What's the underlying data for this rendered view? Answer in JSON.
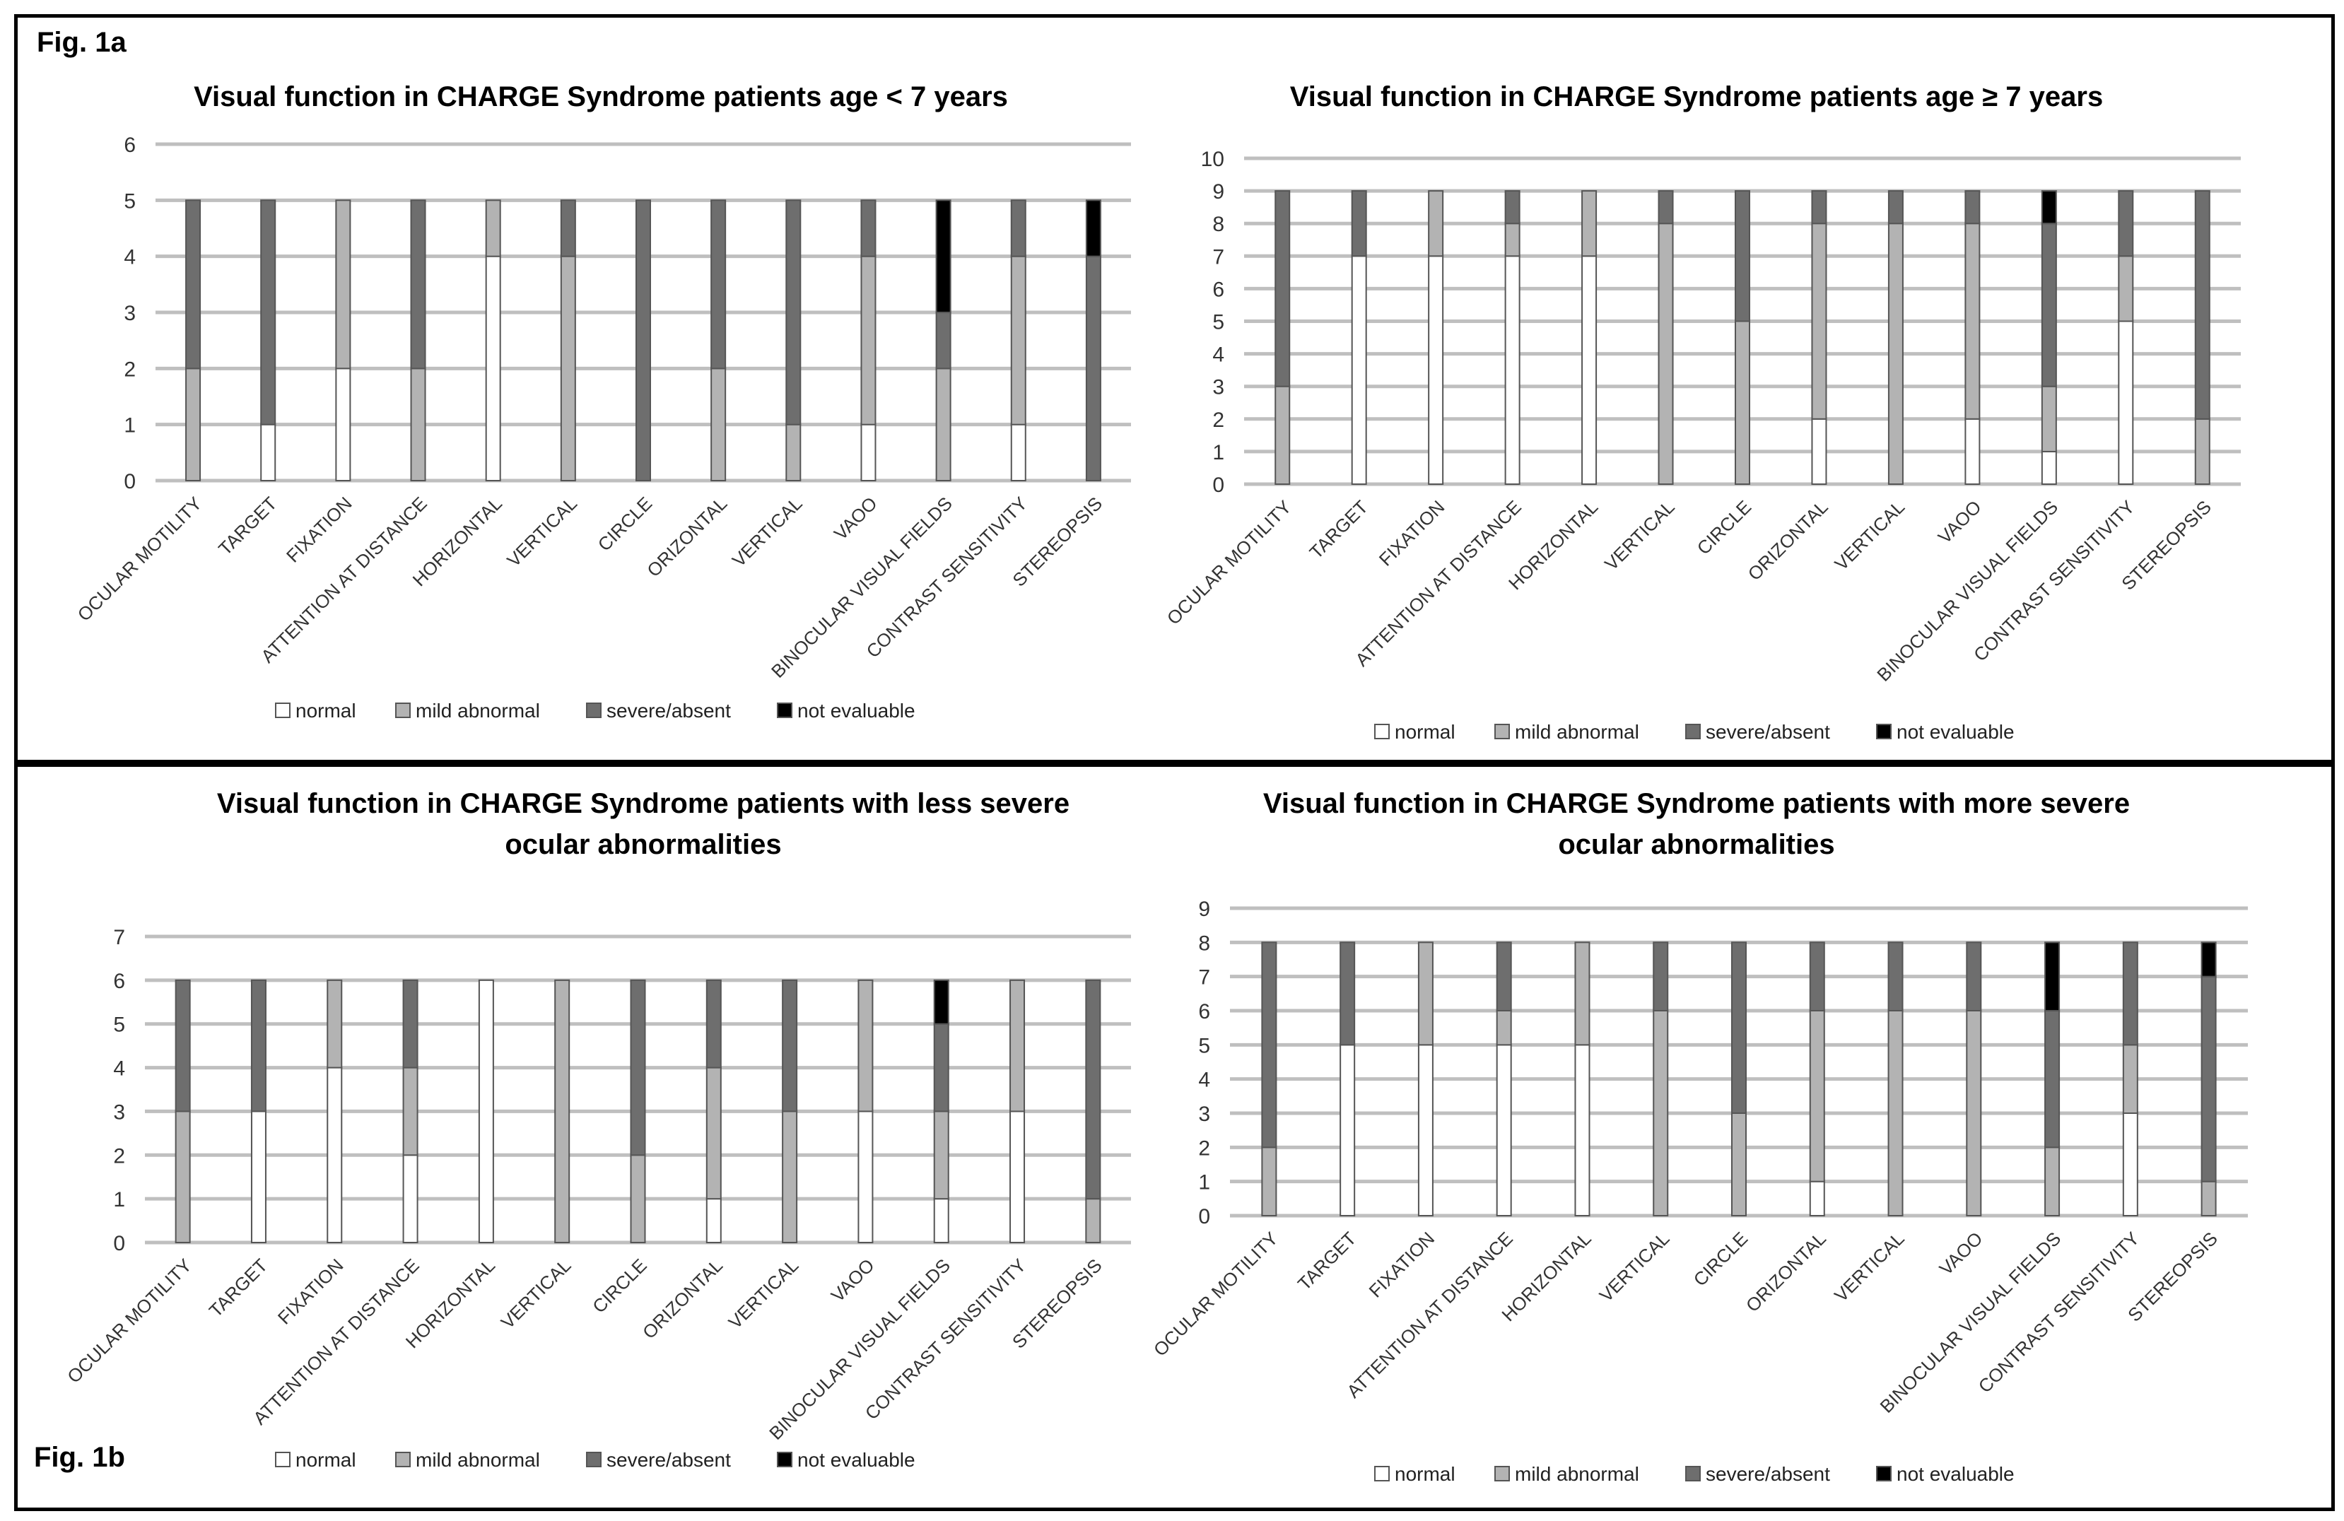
{
  "fig_a_label": "Fig. 1a",
  "fig_b_label": "Fig. 1b",
  "chart_data": [
    {
      "type": "bar",
      "stacked": true,
      "title": [
        "Visual function in CHARGE Syndrome patients age < 7 years"
      ],
      "categories": [
        "OCULAR MOTILITY",
        "TARGET",
        "FIXATION",
        "ATTENTION AT DISTANCE",
        "HORIZONTAL",
        "VERTICAL",
        "CIRCLE",
        "ORIZONTAL",
        "VERTICAL",
        "VAOO",
        "BINOCULAR VISUAL FIELDS",
        "CONTRAST SENSITIVITY",
        "STEREOPSIS"
      ],
      "ylim": [
        0,
        6
      ],
      "yticks": [
        "0",
        "1",
        "2",
        "3",
        "4",
        "5",
        "6"
      ],
      "series": [
        {
          "name": "normal",
          "color": "#ffffff",
          "values": [
            0,
            1,
            2,
            0,
            4,
            0,
            0,
            0,
            0,
            1,
            0,
            1,
            0
          ]
        },
        {
          "name": "mild abnormal",
          "color": "#b3b3b3",
          "values": [
            2,
            0,
            3,
            2,
            1,
            4,
            0,
            2,
            1,
            3,
            2,
            3,
            0
          ]
        },
        {
          "name": "severe/absent",
          "color": "#6e6e6e",
          "values": [
            3,
            4,
            0,
            3,
            0,
            1,
            5,
            3,
            4,
            1,
            1,
            1,
            4
          ]
        },
        {
          "name": "not evaluable",
          "color": "#000000",
          "values": [
            0,
            0,
            0,
            0,
            0,
            0,
            0,
            0,
            0,
            0,
            2,
            0,
            1
          ]
        }
      ]
    },
    {
      "type": "bar",
      "stacked": true,
      "title": [
        "Visual function in CHARGE Syndrome patients age ≥ 7 years"
      ],
      "categories": [
        "OCULAR MOTILITY",
        "TARGET",
        "FIXATION",
        "ATTENTION AT DISTANCE",
        "HORIZONTAL",
        "VERTICAL",
        "CIRCLE",
        "ORIZONTAL",
        "VERTICAL",
        "VAOO",
        "BINOCULAR VISUAL FIELDS",
        "CONTRAST SENSITIVITY",
        "STEREOPSIS"
      ],
      "ylim": [
        0,
        10
      ],
      "yticks": [
        "0",
        "1",
        "2",
        "3",
        "4",
        "5",
        "6",
        "7",
        "8",
        "9",
        "10"
      ],
      "series": [
        {
          "name": "normal",
          "color": "#ffffff",
          "values": [
            0,
            7,
            7,
            7,
            7,
            0,
            0,
            2,
            0,
            2,
            1,
            5,
            0
          ]
        },
        {
          "name": "mild abnormal",
          "color": "#b3b3b3",
          "values": [
            3,
            0,
            2,
            1,
            2,
            8,
            5,
            6,
            8,
            6,
            2,
            2,
            2
          ]
        },
        {
          "name": "severe/absent",
          "color": "#6e6e6e",
          "values": [
            6,
            2,
            0,
            1,
            0,
            1,
            4,
            1,
            1,
            1,
            5,
            2,
            7
          ]
        },
        {
          "name": "not evaluable",
          "color": "#000000",
          "values": [
            0,
            0,
            0,
            0,
            0,
            0,
            0,
            0,
            0,
            0,
            1,
            0,
            0
          ]
        }
      ]
    },
    {
      "type": "bar",
      "stacked": true,
      "title": [
        "Visual function in CHARGE Syndrome patients with less severe",
        "ocular abnormalities"
      ],
      "categories": [
        "OCULAR MOTILITY",
        "TARGET",
        "FIXATION",
        "ATTENTION AT DISTANCE",
        "HORIZONTAL",
        "VERTICAL",
        "CIRCLE",
        "ORIZONTAL",
        "VERTICAL",
        "VAOO",
        "BINOCULAR VISUAL FIELDS",
        "CONTRAST SENSITIVITY",
        "STEREOPSIS"
      ],
      "ylim": [
        0,
        7
      ],
      "yticks": [
        "0",
        "1",
        "2",
        "3",
        "4",
        "5",
        "6",
        "7"
      ],
      "series": [
        {
          "name": "normal",
          "color": "#ffffff",
          "values": [
            0,
            3,
            4,
            2,
            6,
            0,
            0,
            1,
            0,
            3,
            1,
            3,
            0
          ]
        },
        {
          "name": "mild abnormal",
          "color": "#b3b3b3",
          "values": [
            3,
            0,
            2,
            2,
            0,
            6,
            2,
            3,
            3,
            3,
            2,
            3,
            1
          ]
        },
        {
          "name": "severe/absent",
          "color": "#6e6e6e",
          "values": [
            3,
            3,
            0,
            2,
            0,
            0,
            4,
            2,
            3,
            0,
            2,
            0,
            5
          ]
        },
        {
          "name": "not evaluable",
          "color": "#000000",
          "values": [
            0,
            0,
            0,
            0,
            0,
            0,
            0,
            0,
            0,
            0,
            1,
            0,
            0
          ]
        }
      ]
    },
    {
      "type": "bar",
      "stacked": true,
      "title": [
        "Visual function in CHARGE Syndrome patients with more severe",
        "ocular abnormalities"
      ],
      "categories": [
        "OCULAR MOTILITY",
        "TARGET",
        "FIXATION",
        "ATTENTION AT DISTANCE",
        "HORIZONTAL",
        "VERTICAL",
        "CIRCLE",
        "ORIZONTAL",
        "VERTICAL",
        "VAOO",
        "BINOCULAR VISUAL FIELDS",
        "CONTRAST SENSITIVITY",
        "STEREOPSIS"
      ],
      "ylim": [
        0,
        9
      ],
      "yticks": [
        "0",
        "1",
        "2",
        "3",
        "4",
        "5",
        "6",
        "7",
        "8",
        "9"
      ],
      "series": [
        {
          "name": "normal",
          "color": "#ffffff",
          "values": [
            0,
            5,
            5,
            5,
            5,
            0,
            0,
            1,
            0,
            0,
            0,
            3,
            0
          ]
        },
        {
          "name": "mild abnormal",
          "color": "#b3b3b3",
          "values": [
            2,
            0,
            3,
            1,
            3,
            6,
            3,
            5,
            6,
            6,
            2,
            2,
            1
          ]
        },
        {
          "name": "severe/absent",
          "color": "#6e6e6e",
          "values": [
            6,
            3,
            0,
            2,
            0,
            2,
            5,
            2,
            2,
            2,
            4,
            3,
            6
          ]
        },
        {
          "name": "not evaluable",
          "color": "#000000",
          "values": [
            0,
            0,
            0,
            0,
            0,
            0,
            0,
            0,
            0,
            0,
            2,
            0,
            1
          ]
        }
      ]
    }
  ]
}
